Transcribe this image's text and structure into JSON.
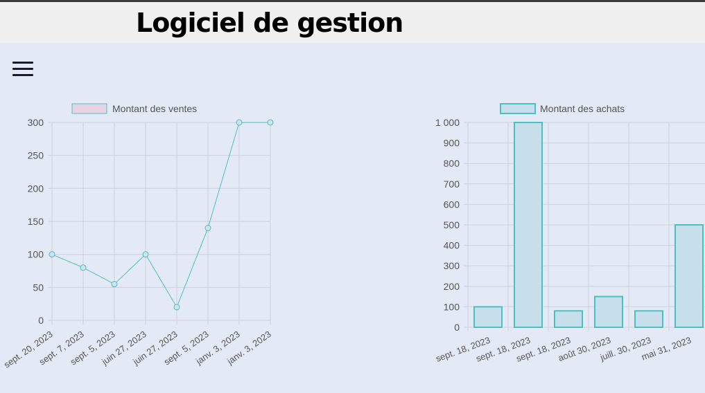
{
  "header": {
    "title": "Logiciel de gestion"
  },
  "menu": {
    "icon": "hamburger-menu-icon"
  },
  "colors": {
    "line_stroke": "#4bc0c0",
    "sales_legend_fill": "#e8d3e3",
    "bar_fill": "#c6dfea",
    "bar_stroke": "#4bc0c0",
    "grid": "#cfcfdd",
    "tick_text": "#555555"
  },
  "chart_data": [
    {
      "type": "line",
      "legend": "Montant des ventes",
      "categories": [
        "sept. 20, 2023",
        "sept. 7, 2023",
        "sept. 5, 2023",
        "juin 27, 2023",
        "juin 27, 2023",
        "sept. 5, 2023",
        "janv. 3, 2023",
        "janv. 3, 2023"
      ],
      "values": [
        100,
        80,
        55,
        100,
        20,
        140,
        300,
        300
      ],
      "ylim": [
        0,
        300
      ],
      "yticks": [
        "0",
        "50",
        "100",
        "150",
        "200",
        "250",
        "300"
      ],
      "grid": true,
      "legend_position": "top"
    },
    {
      "type": "bar",
      "legend": "Montant des achats",
      "categories": [
        "sept. 18, 2023",
        "sept. 18, 2023",
        "sept. 18, 2023",
        "août 30, 2023",
        "juill. 30, 2023",
        "mai 31, 2023"
      ],
      "values": [
        100,
        1000,
        80,
        150,
        80,
        500
      ],
      "ylim": [
        0,
        1000
      ],
      "yticks": [
        "0",
        "100",
        "200",
        "300",
        "400",
        "500",
        "600",
        "700",
        "800",
        "900",
        "1 000"
      ],
      "grid": true,
      "legend_position": "top"
    }
  ]
}
